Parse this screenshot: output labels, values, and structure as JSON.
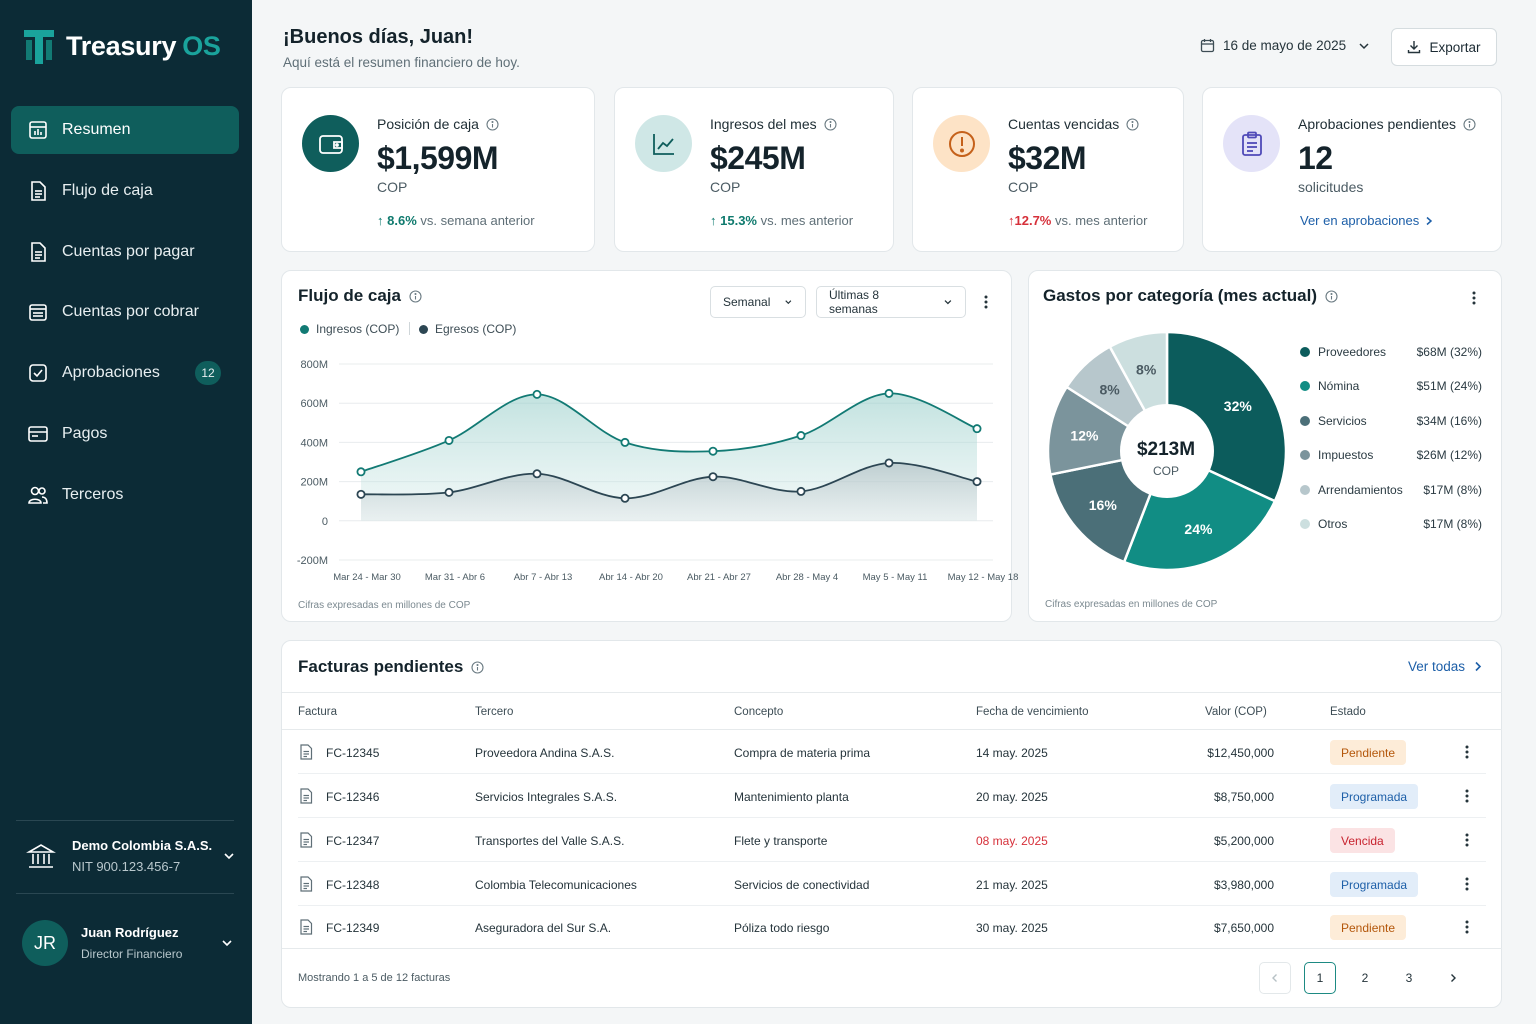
{
  "app": {
    "name_main": "Treasury",
    "name_accent": "OS"
  },
  "sidebar": {
    "items": [
      {
        "label": "Resumen",
        "icon": "dashboard-icon"
      },
      {
        "label": "Flujo de caja",
        "icon": "document-icon"
      },
      {
        "label": "Cuentas por pagar",
        "icon": "document-icon"
      },
      {
        "label": "Cuentas por cobrar",
        "icon": "receipt-icon"
      },
      {
        "label": "Aprobaciones",
        "icon": "checkbox-icon",
        "badge": "12"
      },
      {
        "label": "Pagos",
        "icon": "payment-card-icon"
      },
      {
        "label": "Terceros",
        "icon": "users-icon"
      }
    ],
    "company": {
      "name": "Demo Colombia S.A.S.",
      "nit": "NIT 900.123.456-7"
    },
    "user": {
      "initials": "JR",
      "name": "Juan Rodríguez",
      "role": "Director Financiero"
    }
  },
  "header": {
    "greeting": "¡Buenos días, Juan!",
    "subtitle": "Aquí está el resumen financiero de hoy.",
    "date": "16 de mayo de 2025",
    "export_label": "Exportar"
  },
  "kpis": [
    {
      "title": "Posición de caja",
      "value": "$1,599M",
      "unit": "COP",
      "delta_pct": "8.6%",
      "delta_text": "vs. semana anterior",
      "trend": "up",
      "color": "#0f7a6e"
    },
    {
      "title": "Ingresos del mes",
      "value": "$245M",
      "unit": "COP",
      "delta_pct": "15.3%",
      "delta_text": "vs. mes anterior",
      "trend": "up",
      "color": "#0f7a6e"
    },
    {
      "title": "Cuentas vencidas",
      "value": "$32M",
      "unit": "COP",
      "delta_pct": "12.7%",
      "delta_text": "vs. mes anterior",
      "trend": "up",
      "color": "#d6303a"
    },
    {
      "title": "Aprobaciones pendientes",
      "value": "12",
      "unit": "solicitudes",
      "link": "Ver en aprobaciones"
    }
  ],
  "cashflow": {
    "title": "Flujo de caja",
    "period_select": "Semanal",
    "range_select": "Últimas 8 semanas",
    "footnote": "Cifras expresadas en millones de COP"
  },
  "expenses": {
    "title": "Gastos por categoría (mes actual)",
    "total": "$213M",
    "total_unit": "COP",
    "footnote": "Cifras expresadas en millones de COP"
  },
  "chart_data": [
    {
      "type": "area",
      "categories": [
        "Mar 24 - Mar 30",
        "Mar 31 - Abr 6",
        "Abr 7 - Abr 13",
        "Abr 14 - Abr 20",
        "Abr 21 - Abr 27",
        "Abr 28 - May 4",
        "May 5 - May 11",
        "May 12 - May 18"
      ],
      "series": [
        {
          "name": "Ingresos (COP)",
          "values": [
            250,
            410,
            645,
            400,
            355,
            435,
            650,
            470
          ],
          "color": "#127a74"
        },
        {
          "name": "Egresos (COP)",
          "values": [
            135,
            145,
            240,
            115,
            225,
            150,
            295,
            200
          ],
          "color": "#2c4653"
        }
      ],
      "yticks": [
        "800M",
        "600M",
        "400M",
        "200M",
        "0",
        "-200M"
      ],
      "ylim": [
        -200,
        800
      ],
      "grid": true,
      "legend": "top-left"
    },
    {
      "type": "pie",
      "categories": [
        "Proveedores",
        "Nómina",
        "Servicios",
        "Impuestos",
        "Arrendamientos",
        "Otros"
      ],
      "values": [
        68,
        51,
        34,
        26,
        17,
        17
      ],
      "percents": [
        "32%",
        "24%",
        "16%",
        "12%",
        "8%",
        "8%"
      ],
      "amounts": [
        "$68M (32%)",
        "$51M (24%)",
        "$34M (16%)",
        "$26M (12%)",
        "$17M (8%)",
        "$17M (8%)"
      ],
      "colors": [
        "#0c5c5c",
        "#118d84",
        "#4b6f78",
        "#7b949c",
        "#b7c7cc",
        "#ccdfdf"
      ],
      "legend": "right"
    }
  ],
  "invoices": {
    "title": "Facturas pendientes",
    "view_all": "Ver todas",
    "columns": [
      "Factura",
      "Tercero",
      "Concepto",
      "Fecha de vencimiento",
      "Valor (COP)",
      "Estado"
    ],
    "rows": [
      {
        "id": "FC-12345",
        "party": "Proveedora Andina S.A.S.",
        "concept": "Compra de materia prima",
        "due": "14 may. 2025",
        "amount": "$12,450,000",
        "status": "Pendiente"
      },
      {
        "id": "FC-12346",
        "party": "Servicios Integrales S.A.S.",
        "concept": "Mantenimiento planta",
        "due": "20 may. 2025",
        "amount": "$8,750,000",
        "status": "Programada"
      },
      {
        "id": "FC-12347",
        "party": "Transportes del Valle S.A.S.",
        "concept": "Flete y transporte",
        "due": "08 may. 2025",
        "amount": "$5,200,000",
        "status": "Vencida"
      },
      {
        "id": "FC-12348",
        "party": "Colombia Telecomunicaciones",
        "concept": "Servicios de conectividad",
        "due": "21 may. 2025",
        "amount": "$3,980,000",
        "status": "Programada"
      },
      {
        "id": "FC-12349",
        "party": "Aseguradora del Sur S.A.",
        "concept": "Póliza todo riesgo",
        "due": "30 may. 2025",
        "amount": "$7,650,000",
        "status": "Pendiente"
      }
    ],
    "summary": "Mostrando 1 a 5 de 12 facturas",
    "pages": [
      "1",
      "2",
      "3"
    ],
    "current_page": "1"
  },
  "status_colors": {
    "Pendiente": {
      "bg": "#fdecd8",
      "fg": "#b4570b"
    },
    "Programada": {
      "bg": "#e2edf9",
      "fg": "#1d5fa8"
    },
    "Vencida": {
      "bg": "#fbe3e4",
      "fg": "#c8232f"
    }
  }
}
